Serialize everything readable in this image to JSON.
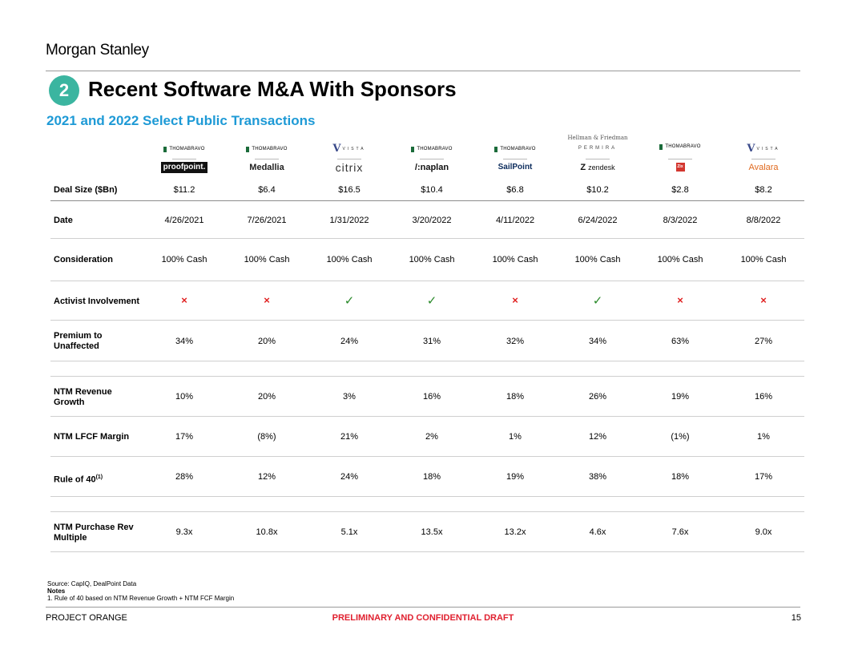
{
  "header": {
    "brand": "Morgan Stanley",
    "section_number": "2",
    "title": "Recent Software M&A With Sponsors",
    "subtitle": "2021 and 2022 Select Public Transactions"
  },
  "sponsor_text": {
    "thoma_bravo": "THOMABRAVO",
    "vista": "VISTA",
    "hellman_friedman": "Hellman & Friedman",
    "permira": "PERMIRA"
  },
  "targets": {
    "proofpoint": "proofpoint.",
    "medallia": "Medallia",
    "citrix": "citrix",
    "anaplan": "/:naplan",
    "sailpoint": "SailPoint",
    "zendesk": "zendesk",
    "zix": "Zix",
    "avalara": "Avalara"
  },
  "rows": {
    "deal_size": {
      "label": "Deal Size ($Bn)",
      "values": [
        "$11.2",
        "$6.4",
        "$16.5",
        "$10.4",
        "$6.8",
        "$10.2",
        "$2.8",
        "$8.2"
      ]
    },
    "date": {
      "label": "Date",
      "values": [
        "4/26/2021",
        "7/26/2021",
        "1/31/2022",
        "3/20/2022",
        "4/11/2022",
        "6/24/2022",
        "8/3/2022",
        "8/8/2022"
      ]
    },
    "consideration": {
      "label": "Consideration",
      "values": [
        "100% Cash",
        "100% Cash",
        "100% Cash",
        "100% Cash",
        "100% Cash",
        "100% Cash",
        "100% Cash",
        "100% Cash"
      ]
    },
    "activist": {
      "label": "Activist Involvement",
      "values": [
        "×",
        "×",
        "✓",
        "✓",
        "×",
        "✓",
        "×",
        "×"
      ]
    },
    "premium": {
      "label_line1": "Premium to",
      "label_line2": "Unaffected",
      "values": [
        "34%",
        "20%",
        "24%",
        "31%",
        "32%",
        "34%",
        "63%",
        "27%"
      ]
    },
    "rev_growth": {
      "label_line1": "NTM Revenue",
      "label_line2": "Growth",
      "values": [
        "10%",
        "20%",
        "3%",
        "16%",
        "18%",
        "26%",
        "19%",
        "16%"
      ]
    },
    "lfcf_margin": {
      "label": "NTM LFCF Margin",
      "values": [
        "17%",
        "(8%)",
        "21%",
        "2%",
        "1%",
        "12%",
        "(1%)",
        "1%"
      ]
    },
    "rule_of_40": {
      "label": "Rule of 40",
      "sup": "(1)",
      "values": [
        "28%",
        "12%",
        "24%",
        "18%",
        "19%",
        "38%",
        "18%",
        "17%"
      ]
    },
    "purchase_multiple": {
      "label_line1": "NTM Purchase Rev",
      "label_line2": "Multiple",
      "values": [
        "9.3x",
        "10.8x",
        "5.1x",
        "13.5x",
        "13.2x",
        "4.6x",
        "7.6x",
        "9.0x"
      ]
    }
  },
  "footnotes": {
    "source": "Source: CapIQ, DealPoint Data",
    "notes_title": "Notes",
    "note1": "1.  Rule of 40 based on NTM Revenue Growth + NTM FCF Margin"
  },
  "footer": {
    "project": "PROJECT ORANGE",
    "confidentiality": "PRELIMINARY AND CONFIDENTIAL DRAFT",
    "page_number": "15"
  },
  "colors": {
    "badge": "#3bb5a0",
    "subtitle": "#1e9ad6",
    "cross": "#e02020",
    "check": "#2a8a2a",
    "footer_center": "#e0202f"
  }
}
